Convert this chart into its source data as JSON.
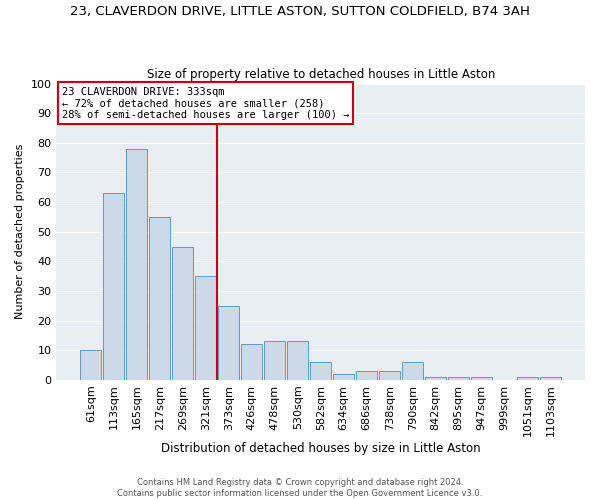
{
  "title": "23, CLAVERDON DRIVE, LITTLE ASTON, SUTTON COLDFIELD, B74 3AH",
  "subtitle": "Size of property relative to detached houses in Little Aston",
  "xlabel": "Distribution of detached houses by size in Little Aston",
  "ylabel": "Number of detached properties",
  "bar_labels": [
    "61sqm",
    "113sqm",
    "165sqm",
    "217sqm",
    "269sqm",
    "321sqm",
    "373sqm",
    "426sqm",
    "478sqm",
    "530sqm",
    "582sqm",
    "634sqm",
    "686sqm",
    "738sqm",
    "790sqm",
    "842sqm",
    "895sqm",
    "947sqm",
    "999sqm",
    "1051sqm",
    "1103sqm"
  ],
  "bar_heights": [
    10,
    63,
    78,
    55,
    45,
    35,
    25,
    12,
    13,
    13,
    6,
    2,
    3,
    3,
    6,
    1,
    1,
    1,
    0,
    1,
    1
  ],
  "bar_color": "#ccd9e8",
  "bar_edge_color": "#6699bb",
  "vline_color": "#cc0000",
  "vline_x": 5.5,
  "annotation_line1": "23 CLAVERDON DRIVE: 333sqm",
  "annotation_line2": "← 72% of detached houses are smaller (258)",
  "annotation_line3": "28% of semi-detached houses are larger (100) →",
  "annotation_box_color": "#ffffff",
  "annotation_box_edge": "#cc0000",
  "ylim": [
    0,
    100
  ],
  "yticks": [
    0,
    10,
    20,
    30,
    40,
    50,
    60,
    70,
    80,
    90,
    100
  ],
  "fig_bg_color": "#ffffff",
  "plot_bg_color": "#e8eef4",
  "grid_color": "#ffffff",
  "footer1": "Contains HM Land Registry data © Crown copyright and database right 2024.",
  "footer2": "Contains public sector information licensed under the Open Government Licence v3.0."
}
